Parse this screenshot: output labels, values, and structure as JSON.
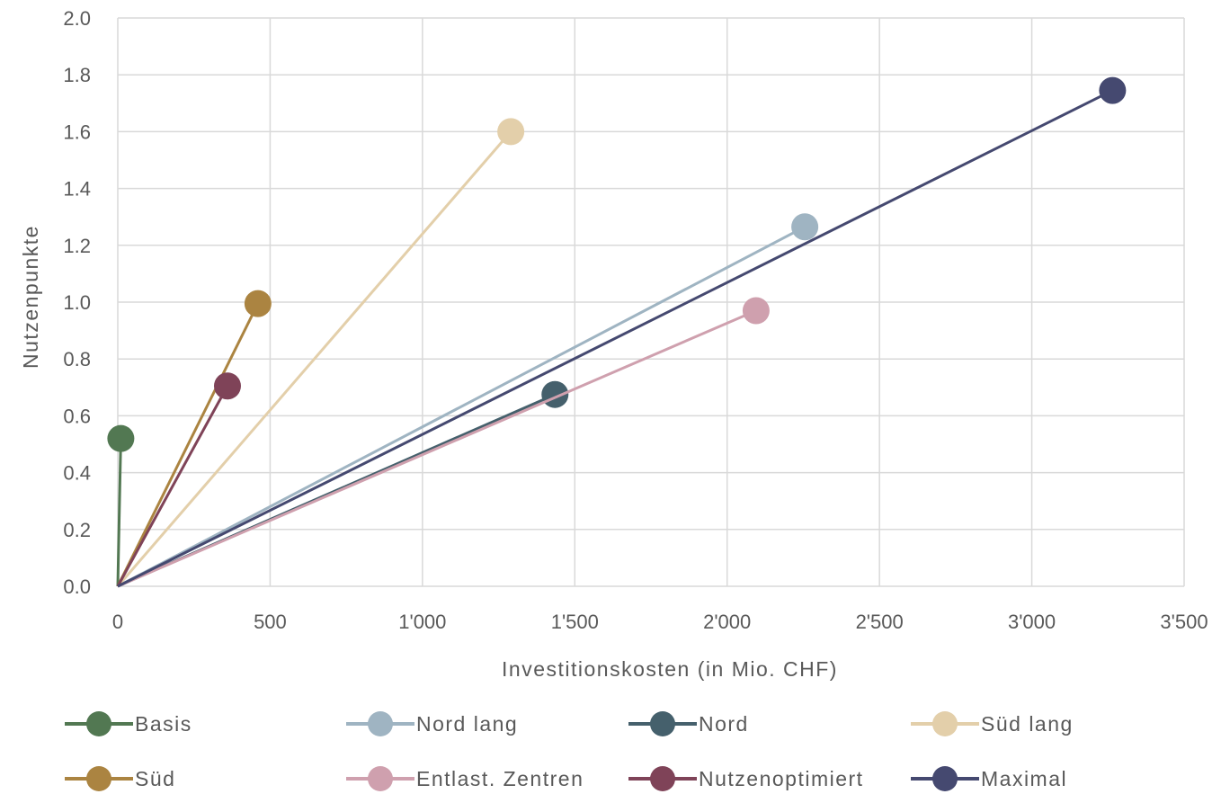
{
  "chart_data": {
    "type": "line",
    "title": "",
    "xlabel": "Investitionskosten (in Mio. CHF)",
    "ylabel": "Nutzenpunkte",
    "xlim": [
      0,
      3500
    ],
    "ylim": [
      0,
      2.0
    ],
    "x_ticks": [
      0,
      500,
      1000,
      1500,
      2000,
      2500,
      3000,
      3500
    ],
    "x_tick_labels": [
      "0",
      "500",
      "1'000",
      "1'500",
      "2'000",
      "2'500",
      "3'000",
      "3'500"
    ],
    "y_ticks": [
      0,
      0.2,
      0.4,
      0.6,
      0.8,
      1.0,
      1.2,
      1.4,
      1.6,
      1.8,
      2.0
    ],
    "y_tick_labels": [
      "0.0",
      "0.2",
      "0.4",
      "0.6",
      "0.8",
      "1.0",
      "1.2",
      "1.4",
      "1.6",
      "1.8",
      "2.0"
    ],
    "grid": true,
    "legend_position": "bottom",
    "series": [
      {
        "name": "Basis",
        "color": "#527852",
        "points": [
          [
            0,
            0
          ],
          [
            10,
            0.52
          ]
        ]
      },
      {
        "name": "Nord lang",
        "color": "#9fb4c2",
        "points": [
          [
            0,
            0
          ],
          [
            2255,
            1.265
          ]
        ]
      },
      {
        "name": "Nord",
        "color": "#45606c",
        "points": [
          [
            0,
            0
          ],
          [
            1435,
            0.675
          ]
        ]
      },
      {
        "name": "Süd lang",
        "color": "#e3cfaa",
        "points": [
          [
            0,
            0
          ],
          [
            1290,
            1.6
          ]
        ]
      },
      {
        "name": "Süd",
        "color": "#ab8441",
        "points": [
          [
            0,
            0
          ],
          [
            460,
            0.995
          ]
        ]
      },
      {
        "name": "Entlast. Zentren",
        "color": "#cfa0ae",
        "points": [
          [
            0,
            0
          ],
          [
            2095,
            0.97
          ]
        ]
      },
      {
        "name": "Nutzenoptimiert",
        "color": "#7f4358",
        "points": [
          [
            0,
            0
          ],
          [
            360,
            0.705
          ]
        ]
      },
      {
        "name": "Maximal",
        "color": "#454970",
        "points": [
          [
            0,
            0
          ],
          [
            3265,
            1.745
          ]
        ]
      }
    ]
  }
}
